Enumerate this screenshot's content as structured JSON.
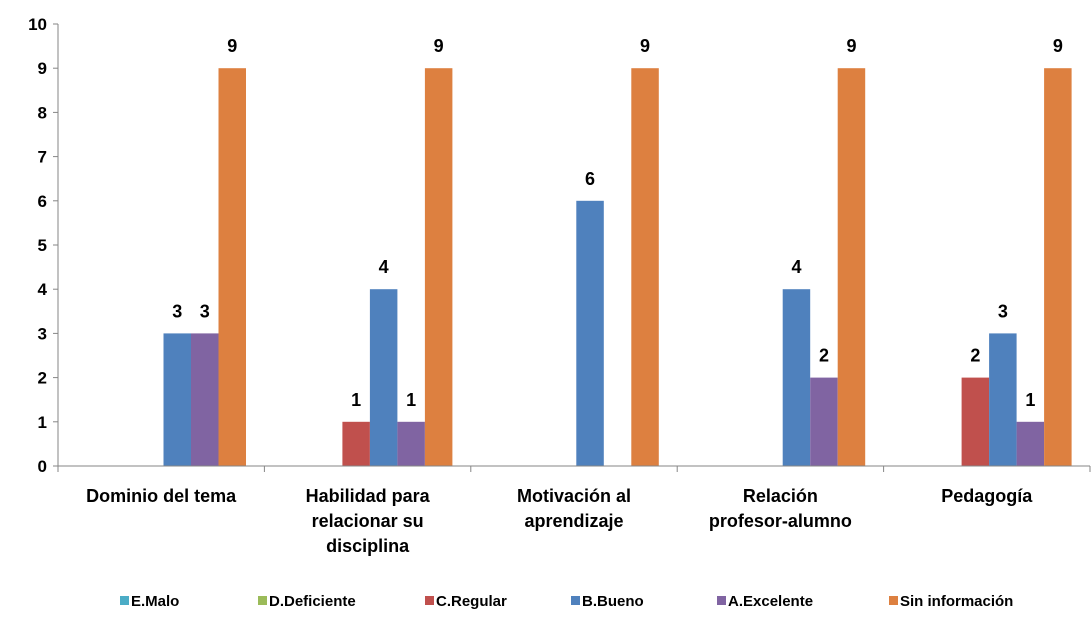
{
  "chart_data": {
    "type": "bar",
    "title": "",
    "xlabel": "",
    "ylabel": "",
    "ylim": [
      0,
      10
    ],
    "yticks": [
      0,
      1,
      2,
      3,
      4,
      5,
      6,
      7,
      8,
      9,
      10
    ],
    "grid": false,
    "legend_position": "bottom",
    "categories": [
      [
        "Dominio del tema"
      ],
      [
        "Habilidad para",
        "relacionar su",
        "disciplina"
      ],
      [
        "Motivación al",
        "aprendizaje"
      ],
      [
        "Relación",
        "profesor-alumno"
      ],
      [
        "Pedagogía"
      ]
    ],
    "series": [
      {
        "name": "E.Malo",
        "color": "#4BACC6",
        "values": [
          0,
          0,
          0,
          0,
          0
        ]
      },
      {
        "name": "D.Deficiente",
        "color": "#9BBB59",
        "values": [
          0,
          0,
          0,
          0,
          0
        ]
      },
      {
        "name": "C.Regular",
        "color": "#C0504D",
        "values": [
          0,
          1,
          0,
          0,
          2
        ]
      },
      {
        "name": "B.Bueno",
        "color": "#4F81BD",
        "values": [
          3,
          4,
          6,
          4,
          3
        ]
      },
      {
        "name": "A.Excelente",
        "color": "#8064A2",
        "values": [
          3,
          1,
          0,
          2,
          1
        ]
      },
      {
        "name": "Sin información",
        "color": "#DD8040",
        "values": [
          9,
          9,
          9,
          9,
          9
        ]
      }
    ]
  }
}
